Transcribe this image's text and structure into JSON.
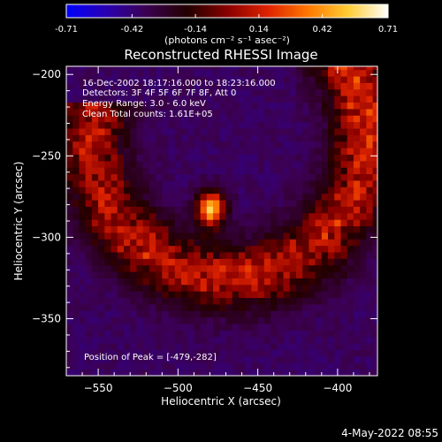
{
  "colorbar": {
    "tick_labels": [
      "-0.71",
      "-0.42",
      "-0.14",
      "0.14",
      "0.42",
      "0.71"
    ],
    "unit_label": "(photons cm⁻² s⁻¹ asec⁻²)",
    "range": [
      -0.71,
      0.71
    ],
    "gradient_colors": [
      "#0000ff",
      "#2a00b0",
      "#3c0050",
      "#220000",
      "#880000",
      "#dd2200",
      "#ff7700",
      "#ffcc33",
      "#ffffff"
    ]
  },
  "chart_data": {
    "type": "heatmap",
    "title": "Reconstructed RHESSI Image",
    "xlabel": "Heliocentric X (arcsec)",
    "ylabel": "Heliocentric Y (arcsec)",
    "xlim": [
      -570,
      -375
    ],
    "ylim": [
      -385,
      -195
    ],
    "x_ticks": [
      -550,
      -500,
      -450,
      -400
    ],
    "y_ticks": [
      -200,
      -250,
      -300,
      -350
    ],
    "x_tick_labels": [
      "−550",
      "−500",
      "−450",
      "−400"
    ],
    "y_tick_labels": [
      "−200",
      "−250",
      "−300",
      "−350"
    ],
    "annotations": [
      "16-Dec-2002 18:17:16.000 to 18:23:16.000",
      "Detectors: 3F 4F 5F 6F 7F 8F, Att 0",
      "Energy Range: 3.0 - 6.0 keV",
      "Clean     Total counts: 1.61E+05"
    ],
    "peak_label": "Position of Peak = [-479,-282]",
    "peak": {
      "x": -479,
      "y": -282,
      "value": 0.71
    },
    "background_value": -0.25,
    "emission_arc": {
      "center": [
        -468,
        -238
      ],
      "radius_arcsec": 86,
      "width_arcsec": 22,
      "angle_range_deg": [
        -40,
        215
      ],
      "value": 0.22
    },
    "pixel_size_arcsec": 4
  },
  "footer": {
    "date": "4-May-2022 08:55"
  },
  "colors": {
    "axis": "#ffffff",
    "background": "#000000"
  }
}
